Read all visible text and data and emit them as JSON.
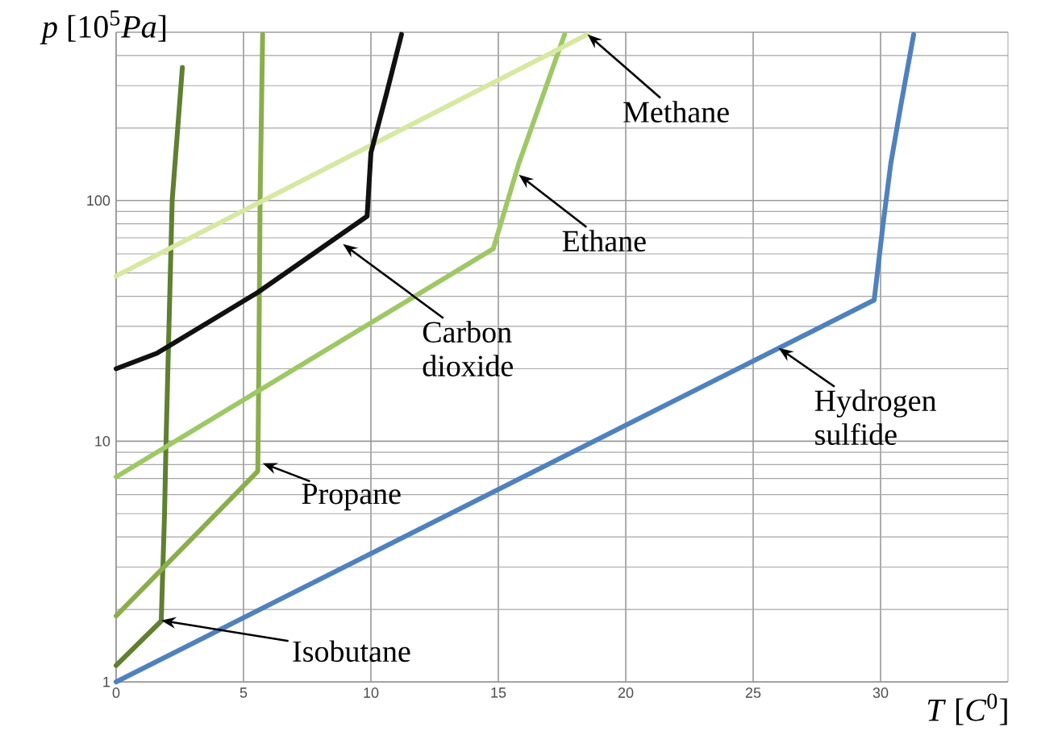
{
  "chart_data": {
    "type": "line",
    "xlabel": "*T* [*C*$^{0}$]",
    "ylabel": "*p* [10$^{5}$*Pa*]",
    "log": "y",
    "grid": true,
    "xlim": [
      0,
      35
    ],
    "xticks": [
      0,
      5,
      10,
      15,
      20,
      25,
      30
    ],
    "ylim": [
      1,
      500
    ],
    "yticks": [
      1,
      10,
      100
    ],
    "series": [
      {
        "color": "#5f8030",
        "x": [
          0,
          1.77,
          1.9,
          1.96,
          2.2,
          2.6
        ],
        "values": [
          1.17,
          1.79,
          5,
          10,
          100,
          357
        ]
      },
      {
        "color": "#8aae4c",
        "x": [
          0,
          5.56,
          5.6,
          5.65,
          5.75
        ],
        "values": [
          1.88,
          7.5,
          20,
          100,
          490
        ]
      },
      {
        "color": "#9ec865",
        "x": [
          0,
          14.8,
          15.8,
          17.6
        ],
        "values": [
          7.1,
          63,
          142,
          490
        ]
      },
      {
        "color": "#d6e8a2",
        "x": [
          0,
          18.5
        ],
        "values": [
          48.6,
          490
        ]
      },
      {
        "color": "#111111",
        "x": [
          0,
          1.6,
          5.56,
          9.85,
          10.0,
          10.6,
          11.2
        ],
        "values": [
          20,
          23.2,
          41.5,
          86,
          158,
          275,
          490
        ]
      },
      {
        "color": "#4f81bd",
        "x": [
          0,
          29.75,
          30.1,
          30.4,
          30.8,
          31.3
        ],
        "values": [
          1,
          38.6,
          80,
          142,
          250,
          490
        ]
      }
    ],
    "annotations": [
      {
        "text": "Methane",
        "x": 18.5,
        "y": 490
      },
      {
        "text": "Ethane",
        "x": 15.8,
        "y": 128
      },
      {
        "text": "Carbon dioxide",
        "x": 8.9,
        "y": 66
      },
      {
        "text": "Propane",
        "x": 5.75,
        "y": 8.1
      },
      {
        "text": "Isobutane",
        "x": 1.77,
        "y": 1.8
      },
      {
        "text": "Hydrogen sulfide",
        "x": 26,
        "y": 24.4
      }
    ]
  }
}
